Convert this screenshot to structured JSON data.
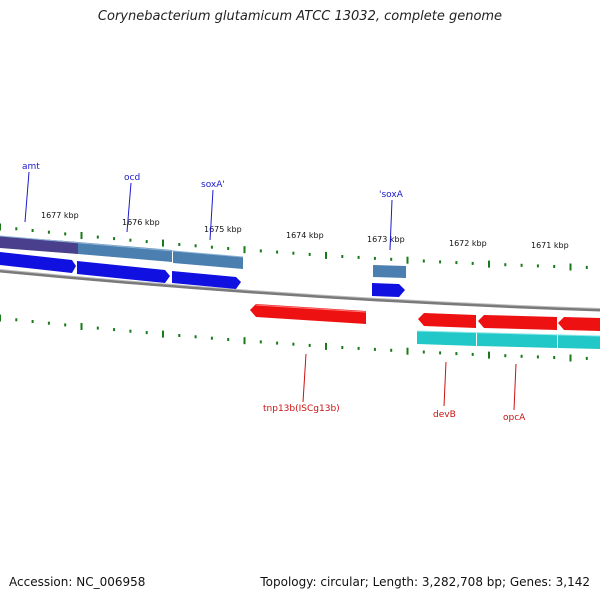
{
  "title": "Corynebacterium glutamicum ATCC 13032, complete genome",
  "footer": {
    "accession": "Accession: NC_006958",
    "topology": "Topology: circular; Length: 3,282,708 bp; Genes: 3,142"
  },
  "colors": {
    "backbone": "#808080",
    "tick": "#1a7a1a",
    "gene_blue": "#1010e0",
    "gene_steel": "#4a7fb0",
    "gene_purple": "#4a3f8c",
    "gene_red": "#ee1111",
    "gene_cyan": "#22c8c8",
    "label_blue": "#1a1acc",
    "label_red": "#cc1111"
  },
  "kbp_labels": [
    "1677 kbp",
    "1676 kbp",
    "1675 kbp",
    "1674 kbp",
    "1673 kbp",
    "1672 kbp",
    "1671 kbp"
  ],
  "gene_labels": {
    "top": [
      "amt",
      "ocd",
      "soxA'",
      "'soxA"
    ],
    "bottom": [
      "tnp13b(ISCg13b)",
      "devB",
      "opcA"
    ]
  }
}
